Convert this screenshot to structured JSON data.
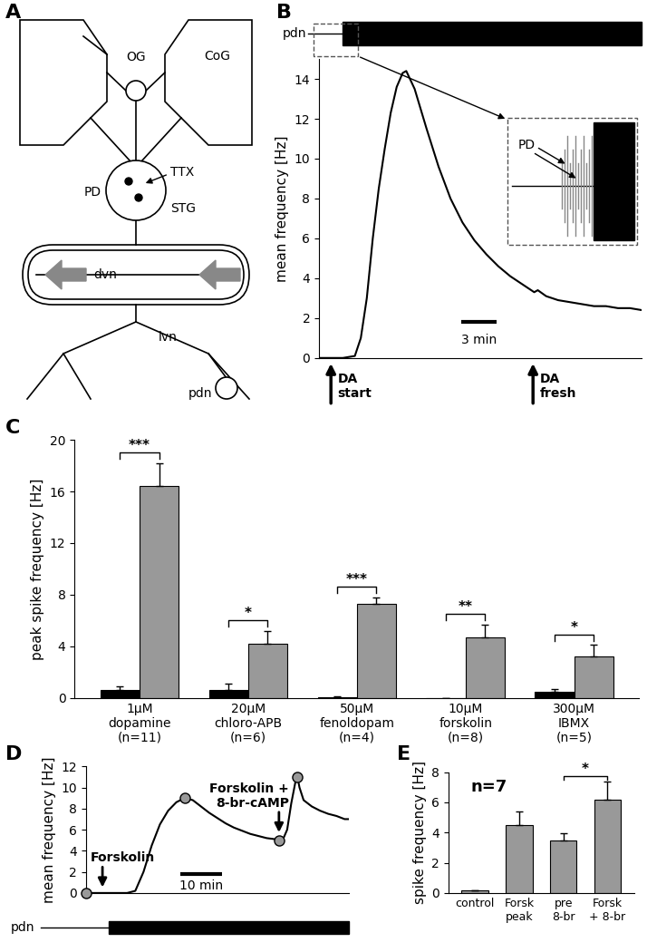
{
  "diagram": {
    "title": "A",
    "nodes": [
      {
        "label": "CoG"
      },
      {
        "label": "OG"
      },
      {
        "label": "PD"
      },
      {
        "label": "TTX"
      },
      {
        "label": "STG"
      },
      {
        "label": "dvn"
      },
      {
        "label": "lvn"
      },
      {
        "label": "pdn"
      }
    ]
  },
  "chart_data": [
    {
      "type": "line",
      "title": "B",
      "y_label": "mean frequency [Hz]",
      "color": "#000000",
      "x": [
        0,
        1,
        2,
        3,
        3.5,
        4,
        4.5,
        5,
        5.5,
        6,
        6.5,
        7,
        7.3,
        8,
        9,
        10,
        11,
        12,
        13,
        14,
        15,
        16,
        17,
        18,
        18.3,
        19,
        20,
        21,
        22,
        23,
        24,
        25,
        26,
        27
      ],
      "values": [
        0,
        0,
        0,
        0.1,
        1,
        3,
        6,
        8.5,
        10.5,
        12.3,
        13.6,
        14.3,
        14.4,
        13.5,
        11.5,
        9.6,
        8.0,
        6.8,
        5.9,
        5.2,
        4.6,
        4.1,
        3.7,
        3.3,
        3.4,
        3.1,
        2.9,
        2.8,
        2.7,
        2.6,
        2.6,
        2.5,
        2.5,
        2.4
      ],
      "xlim": [
        0,
        27
      ],
      "ylim": [
        0,
        15
      ],
      "yticks": [
        0,
        2,
        4,
        6,
        8,
        10,
        12,
        14
      ],
      "tick_labels": "y",
      "scale_bar": {
        "value": 3,
        "label": "3 min"
      },
      "annotations": [
        {
          "text": "DA\nstart",
          "x": 1.0
        },
        {
          "text": "DA\nfresh",
          "x": 17.9
        }
      ],
      "trace_label": "pdn",
      "inset_label": "PD"
    },
    {
      "type": "bar",
      "title": "C",
      "y_label": "peak spike frequency [Hz]",
      "categories": [
        "1µM\ndopamine\n(n=11)",
        "20µM\nchloro-APB\n(n=6)",
        "50µM\nfenoldopam\n(n=4)",
        "10µM\nforskolin\n(n=8)",
        "300µM\nIBMX\n(n=5)"
      ],
      "series": [
        {
          "color": "#000000",
          "values": [
            0.6,
            0.6,
            0.05,
            0.0,
            0.5
          ],
          "errors": [
            0.3,
            0.5,
            0.05,
            0.0,
            0.2
          ]
        },
        {
          "color": "#999999",
          "values": [
            16.4,
            4.2,
            7.3,
            4.7,
            3.2
          ],
          "errors": [
            1.8,
            1.0,
            0.5,
            1.0,
            0.9
          ]
        }
      ],
      "ylim": [
        0,
        20
      ],
      "yticks": [
        0,
        4,
        8,
        12,
        16,
        20
      ],
      "significance": [
        "***",
        "*",
        "***",
        "**",
        "*"
      ]
    },
    {
      "type": "line",
      "title": "D",
      "y_label": "mean frequency [Hz]",
      "color": "#000000",
      "x": [
        0,
        5,
        10,
        12,
        14,
        16,
        18,
        20,
        22,
        24,
        26,
        28,
        30,
        32,
        34,
        36,
        38,
        40,
        42,
        44,
        46,
        47,
        48,
        49,
        50,
        51,
        51.5,
        52,
        53,
        55,
        57,
        59,
        61,
        63,
        64
      ],
      "values": [
        0,
        0,
        0,
        0.2,
        2,
        4.5,
        6.5,
        7.8,
        8.6,
        9,
        8.8,
        8.2,
        7.6,
        7.1,
        6.6,
        6.2,
        5.9,
        5.6,
        5.4,
        5.2,
        5.1,
        5.0,
        5.1,
        6,
        8.5,
        10.5,
        11,
        10,
        8.8,
        8.2,
        7.8,
        7.5,
        7.3,
        7.0,
        7.0
      ],
      "points": {
        "x": [
          0,
          24,
          47,
          51.5
        ],
        "values": [
          0,
          9,
          5,
          11
        ],
        "marker": "o",
        "color": "#999999"
      },
      "xlim": [
        0,
        64
      ],
      "ylim": [
        0,
        12
      ],
      "yticks": [
        0,
        2,
        4,
        6,
        8,
        10,
        12
      ],
      "tick_labels": "y",
      "scale_bar": {
        "value": 10,
        "label": "10 min"
      },
      "annotations": [
        {
          "text": "Forskolin",
          "x": 4,
          "y": 0.3
        },
        {
          "text": "Forskolin +\n8-br-cAMP",
          "x": 47,
          "y": 5.5
        }
      ],
      "trace_label": "pdn"
    },
    {
      "type": "bar",
      "title": "E",
      "y_label": "spike frequency [Hz]",
      "categories": [
        "control",
        "Forsk\npeak",
        "pre\n8-br",
        "Forsk\n+ 8-br"
      ],
      "values": [
        0.15,
        4.5,
        3.5,
        6.2
      ],
      "errors": [
        0.05,
        0.9,
        0.45,
        1.2
      ],
      "color": "#999999",
      "ylim": [
        0,
        8
      ],
      "yticks": [
        0,
        2,
        4,
        6,
        8
      ],
      "annotations": [
        {
          "text": "n=7"
        }
      ],
      "significance": [
        {
          "between": [
            2,
            3
          ],
          "text": "*"
        }
      ]
    }
  ]
}
